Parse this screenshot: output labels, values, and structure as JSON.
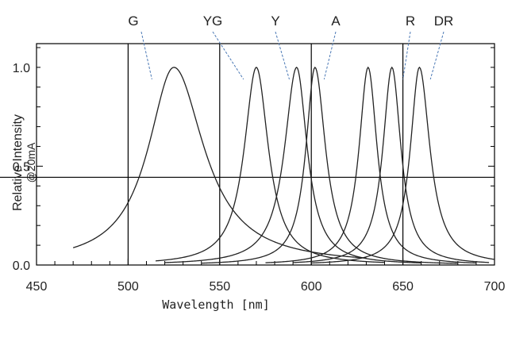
{
  "chart_data": {
    "type": "line",
    "xlabel": "Wavelength [nm]",
    "ylabel": "Relative Intensity",
    "ylabel_sub": "@20mA",
    "xlim": [
      450,
      700
    ],
    "ylim": [
      0,
      1.1
    ],
    "x_ticks": [
      "450",
      "500",
      "550",
      "600",
      "650",
      "700"
    ],
    "x_tick_values": [
      450,
      500,
      550,
      600,
      650,
      700
    ],
    "y_ticks": [
      "0.0",
      "0.5",
      "1.0"
    ],
    "y_tick_values": [
      0.0,
      0.5,
      1.0
    ],
    "vertical_gridlines": [
      500,
      550,
      600,
      650
    ],
    "horizontal_gridlines": [
      0.5
    ],
    "series": [
      {
        "name": "G",
        "peak": 525,
        "fwhm_left": 17,
        "fwhm_right": 20,
        "start": 470,
        "end": 630
      },
      {
        "name": "YG",
        "peak": 570,
        "fwhm_left": 8,
        "fwhm_right": 8,
        "start": 515,
        "end": 640
      },
      {
        "name": "Y",
        "peak": 592,
        "fwhm_left": 8,
        "fwhm_right": 7,
        "start": 520,
        "end": 660
      },
      {
        "name": "A",
        "peak": 602,
        "fwhm_left": 6,
        "fwhm_right": 7,
        "start": 540,
        "end": 680
      },
      {
        "name": "",
        "peak": 631,
        "fwhm_left": 6,
        "fwhm_right": 6,
        "start": 575,
        "end": 690
      },
      {
        "name": "R",
        "peak": 644,
        "fwhm_left": 6,
        "fwhm_right": 6,
        "start": 590,
        "end": 697
      },
      {
        "name": "DR",
        "peak": 659,
        "fwhm_left": 6,
        "fwhm_right": 7,
        "start": 600,
        "end": 700
      }
    ],
    "annotations": [
      {
        "text": "G",
        "target": 513
      },
      {
        "text": "YG",
        "target": 563
      },
      {
        "text": "Y",
        "target": 588
      },
      {
        "text": "A",
        "target": 607
      },
      {
        "text": "R",
        "target": 650
      },
      {
        "text": "DR",
        "target": 665
      }
    ]
  }
}
